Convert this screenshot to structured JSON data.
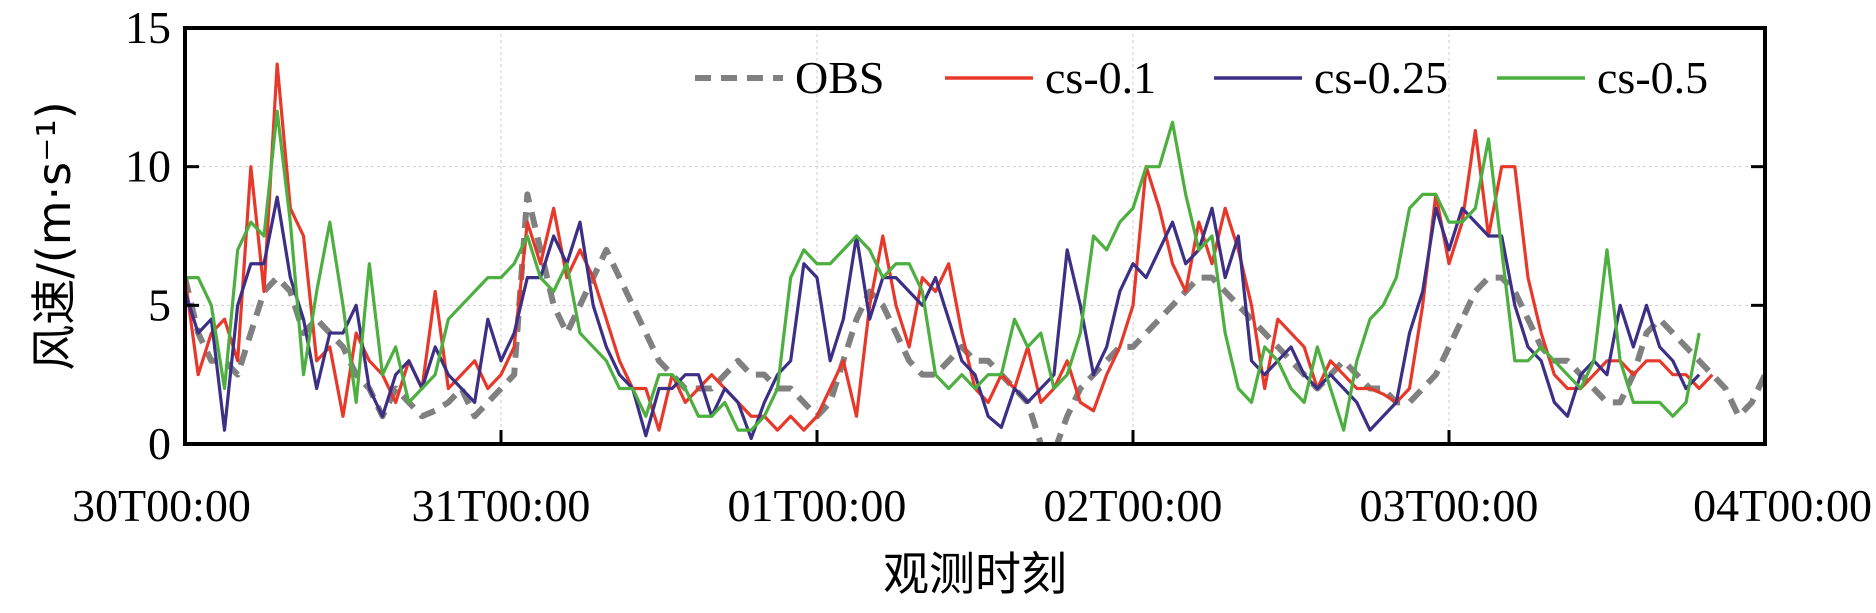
{
  "chart_data": {
    "type": "line",
    "xlabel": "观测时刻",
    "ylabel": "风速/(m·s⁻¹)",
    "ylim": [
      0,
      15
    ],
    "xlim": [
      0,
      120
    ],
    "x_unit": "hours since 30T00:00",
    "grid": true,
    "legend_position": "top-right",
    "x_ticks": [
      {
        "x": 0,
        "label": "30T00:00"
      },
      {
        "x": 24,
        "label": "31T00:00"
      },
      {
        "x": 48,
        "label": "01T00:00"
      },
      {
        "x": 72,
        "label": "02T00:00"
      },
      {
        "x": 96,
        "label": "03T00:00"
      },
      {
        "x": 120,
        "label": "04T00:00"
      }
    ],
    "y_ticks": [
      {
        "y": 0,
        "label": "0"
      },
      {
        "y": 5,
        "label": "5"
      },
      {
        "y": 10,
        "label": "10"
      },
      {
        "y": 15,
        "label": "15"
      }
    ],
    "series": [
      {
        "name": "OBS",
        "color": "#808080",
        "dash": true,
        "values": [
          6.0,
          4.0,
          3.0,
          3.0,
          2.5,
          4.0,
          5.5,
          6.0,
          5.5,
          4.0,
          4.5,
          4.0,
          3.5,
          2.5,
          2.0,
          1.0,
          2.0,
          1.5,
          1.0,
          1.2,
          1.5,
          2.0,
          1.0,
          1.5,
          2.0,
          2.5,
          9.0,
          7.0,
          5.0,
          4.0,
          5.0,
          6.0,
          7.0,
          6.0,
          5.0,
          4.0,
          3.0,
          2.5,
          2.0,
          2.0,
          2.0,
          2.5,
          3.0,
          2.5,
          2.5,
          2.0,
          2.0,
          1.5,
          1.0,
          1.5,
          3.0,
          4.5,
          5.5,
          5.0,
          4.0,
          3.0,
          2.5,
          2.5,
          3.0,
          3.5,
          3.0,
          3.0,
          2.5,
          2.0,
          1.5,
          0.0,
          -0.3,
          1.0,
          2.0,
          2.5,
          3.0,
          3.5,
          3.5,
          4.0,
          4.5,
          5.0,
          5.5,
          6.0,
          6.0,
          5.5,
          5.0,
          4.5,
          4.0,
          3.5,
          3.0,
          2.5,
          2.0,
          2.5,
          3.0,
          2.5,
          2.0,
          2.0,
          1.5,
          1.5,
          2.0,
          2.5,
          3.5,
          4.5,
          5.5,
          6.0,
          6.0,
          5.5,
          4.5,
          3.5,
          3.0,
          3.0,
          2.5,
          2.0,
          1.5,
          1.5,
          2.5,
          4.0,
          4.5,
          4.0,
          3.5,
          3.0,
          2.5,
          2.0,
          1.0,
          1.5,
          2.5
        ]
      },
      {
        "name": "cs-0.1",
        "color": "#e8382a",
        "dash": false,
        "values": [
          6.0,
          2.5,
          4.0,
          4.5,
          3.0,
          10.0,
          5.5,
          13.7,
          8.5,
          7.5,
          3.0,
          3.5,
          1.0,
          4.0,
          3.0,
          2.5,
          1.5,
          3.0,
          2.0,
          5.5,
          2.0,
          2.5,
          3.0,
          2.0,
          2.5,
          3.5,
          8.0,
          6.5,
          8.5,
          6.0,
          7.0,
          6.0,
          4.5,
          3.0,
          2.0,
          2.0,
          0.5,
          2.5,
          1.5,
          2.0,
          2.5,
          2.0,
          1.5,
          1.0,
          1.0,
          0.5,
          1.0,
          0.5,
          1.0,
          2.0,
          3.0,
          1.0,
          5.0,
          7.5,
          5.0,
          3.5,
          6.0,
          5.5,
          6.5,
          4.0,
          2.0,
          1.5,
          2.5,
          2.0,
          3.5,
          1.5,
          2.0,
          3.0,
          1.5,
          1.2,
          2.5,
          3.5,
          5.0,
          10.0,
          8.5,
          6.5,
          5.5,
          8.0,
          6.5,
          8.5,
          7.0,
          5.0,
          2.0,
          4.5,
          4.0,
          3.5,
          2.0,
          3.0,
          2.5,
          2.0,
          2.0,
          1.8,
          1.5,
          2.0,
          5.0,
          9.0,
          6.5,
          8.0,
          11.3,
          7.5,
          10.0,
          10.0,
          6.0,
          4.0,
          2.5,
          2.0,
          2.0,
          2.5,
          3.0,
          3.0,
          2.5,
          3.0,
          3.0,
          2.5,
          2.5,
          2.0,
          2.5
        ]
      },
      {
        "name": "cs-0.25",
        "color": "#3b2f86",
        "dash": false,
        "values": [
          5.5,
          4.0,
          4.5,
          0.5,
          5.0,
          6.5,
          6.5,
          8.9,
          6.0,
          4.5,
          2.0,
          4.0,
          4.0,
          5.0,
          2.0,
          1.0,
          2.5,
          3.0,
          2.0,
          3.5,
          2.5,
          2.0,
          1.5,
          4.5,
          3.0,
          4.0,
          6.0,
          6.0,
          7.5,
          6.5,
          8.0,
          5.0,
          3.5,
          2.5,
          2.0,
          0.3,
          2.0,
          2.0,
          2.5,
          2.5,
          1.0,
          2.0,
          1.5,
          0.2,
          1.5,
          2.5,
          3.0,
          6.5,
          6.0,
          3.0,
          4.5,
          7.5,
          4.5,
          6.0,
          6.0,
          5.5,
          5.0,
          6.0,
          4.5,
          3.0,
          2.5,
          1.0,
          0.6,
          2.0,
          1.5,
          2.0,
          2.5,
          7.0,
          5.0,
          2.5,
          3.5,
          5.5,
          6.5,
          6.0,
          7.0,
          8.0,
          6.5,
          7.0,
          8.5,
          6.0,
          7.5,
          3.0,
          2.5,
          3.0,
          3.5,
          2.5,
          2.0,
          2.5,
          2.0,
          1.5,
          0.5,
          1.0,
          1.5,
          4.0,
          5.5,
          8.5,
          7.0,
          8.5,
          8.0,
          7.5,
          7.5,
          5.0,
          3.5,
          3.0,
          1.5,
          1.0,
          2.5,
          3.0,
          2.5,
          5.0,
          3.5,
          5.0,
          3.5,
          3.0,
          2.0,
          2.5
        ]
      },
      {
        "name": "cs-0.5",
        "color": "#4caf3f",
        "dash": false,
        "values": [
          6.0,
          6.0,
          5.0,
          2.0,
          7.0,
          8.0,
          7.5,
          12.0,
          8.0,
          2.5,
          5.5,
          8.0,
          5.0,
          1.5,
          6.5,
          2.5,
          3.5,
          1.5,
          2.0,
          2.5,
          4.5,
          5.0,
          5.5,
          6.0,
          6.0,
          6.5,
          7.5,
          6.0,
          5.5,
          6.5,
          4.0,
          3.5,
          3.0,
          2.0,
          2.0,
          1.0,
          2.5,
          2.5,
          2.0,
          1.0,
          1.0,
          1.5,
          0.5,
          0.5,
          1.0,
          2.0,
          6.0,
          7.0,
          6.5,
          6.5,
          7.0,
          7.5,
          7.0,
          6.0,
          6.5,
          6.5,
          5.5,
          2.5,
          2.0,
          2.5,
          2.0,
          2.5,
          2.5,
          4.5,
          3.5,
          4.0,
          2.0,
          2.5,
          4.0,
          7.5,
          7.0,
          8.0,
          8.5,
          10.0,
          10.0,
          11.6,
          9.0,
          7.0,
          7.5,
          4.0,
          2.0,
          1.5,
          3.5,
          3.0,
          2.0,
          1.5,
          3.5,
          2.0,
          0.5,
          3.0,
          4.5,
          5.0,
          6.0,
          8.5,
          9.0,
          9.0,
          8.0,
          8.0,
          8.5,
          11.0,
          7.0,
          3.0,
          3.0,
          3.5,
          3.0,
          2.5,
          2.0,
          3.0,
          7.0,
          3.0,
          1.5,
          1.5,
          1.5,
          1.0,
          1.5,
          4.0
        ]
      }
    ]
  }
}
